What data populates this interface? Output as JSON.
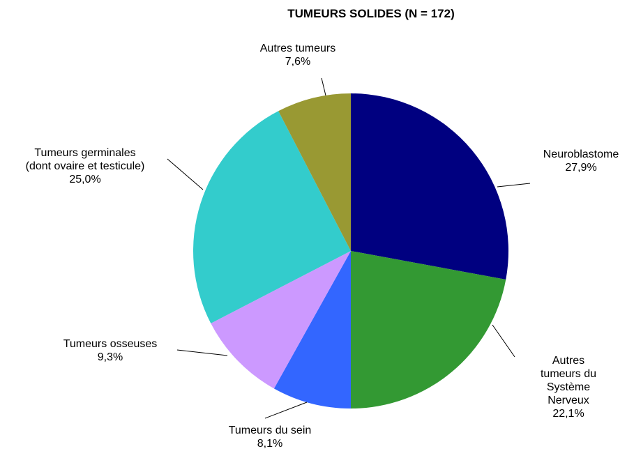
{
  "chart_data": {
    "type": "pie",
    "title": "TUMEURS SOLIDES (N = 172)",
    "categories": [
      "Neuroblastome",
      "Autres tumeurs du\nSystème Nerveux",
      "Tumeurs du sein",
      "Tumeurs osseuses",
      "Tumeurs germinales\n(dont ovaire et testicule)",
      "Autres tumeurs"
    ],
    "values": [
      27.9,
      22.1,
      8.1,
      9.3,
      25.0,
      7.6
    ],
    "value_labels": [
      "27,9%",
      "22,1%",
      "8,1%",
      "9,3%",
      "25,0%",
      "7,6%"
    ],
    "colors": [
      "#000080",
      "#339933",
      "#3366ff",
      "#cc99ff",
      "#33cccc",
      "#999933"
    ]
  }
}
